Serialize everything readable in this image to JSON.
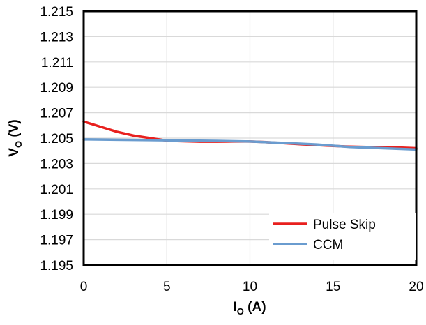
{
  "chart_data": {
    "type": "line",
    "title": "",
    "xlabel": {
      "main": "I",
      "sub": "O",
      "suffix": " (A)"
    },
    "ylabel": {
      "main": "V",
      "sub": "O",
      "suffix": " (V)"
    },
    "xlim": [
      0,
      20
    ],
    "ylim": [
      1.195,
      1.215
    ],
    "x_ticks": [
      "0",
      "5",
      "10",
      "15",
      "20"
    ],
    "y_ticks": [
      "1.195",
      "1.197",
      "1.199",
      "1.201",
      "1.203",
      "1.205",
      "1.207",
      "1.209",
      "1.211",
      "1.213",
      "1.215"
    ],
    "grid": true,
    "legend_position": "bottom-right",
    "series": [
      {
        "name": "Pulse Skip",
        "color": "#e8201e",
        "points": [
          [
            0,
            1.2063
          ],
          [
            1,
            1.2059
          ],
          [
            2,
            1.2055
          ],
          [
            3,
            1.2052
          ],
          [
            4,
            1.205
          ],
          [
            5,
            1.2048
          ],
          [
            6,
            1.20475
          ],
          [
            7,
            1.20472
          ],
          [
            8,
            1.20472
          ],
          [
            9,
            1.20473
          ],
          [
            10,
            1.20473
          ],
          [
            11,
            1.20468
          ],
          [
            12,
            1.2046
          ],
          [
            13,
            1.20452
          ],
          [
            14,
            1.20445
          ],
          [
            15,
            1.20438
          ],
          [
            16,
            1.20433
          ],
          [
            17,
            1.2043
          ],
          [
            18,
            1.20428
          ],
          [
            19,
            1.20425
          ],
          [
            20,
            1.2042
          ]
        ]
      },
      {
        "name": "CCM",
        "color": "#6a9ccf",
        "points": [
          [
            0,
            1.2049
          ],
          [
            2,
            1.20487
          ],
          [
            4,
            1.20484
          ],
          [
            6,
            1.20481
          ],
          [
            8,
            1.20478
          ],
          [
            10,
            1.20473
          ],
          [
            12,
            1.20462
          ],
          [
            14,
            1.2045
          ],
          [
            16,
            1.2043
          ],
          [
            18,
            1.2042
          ],
          [
            20,
            1.2041
          ]
        ]
      }
    ]
  }
}
